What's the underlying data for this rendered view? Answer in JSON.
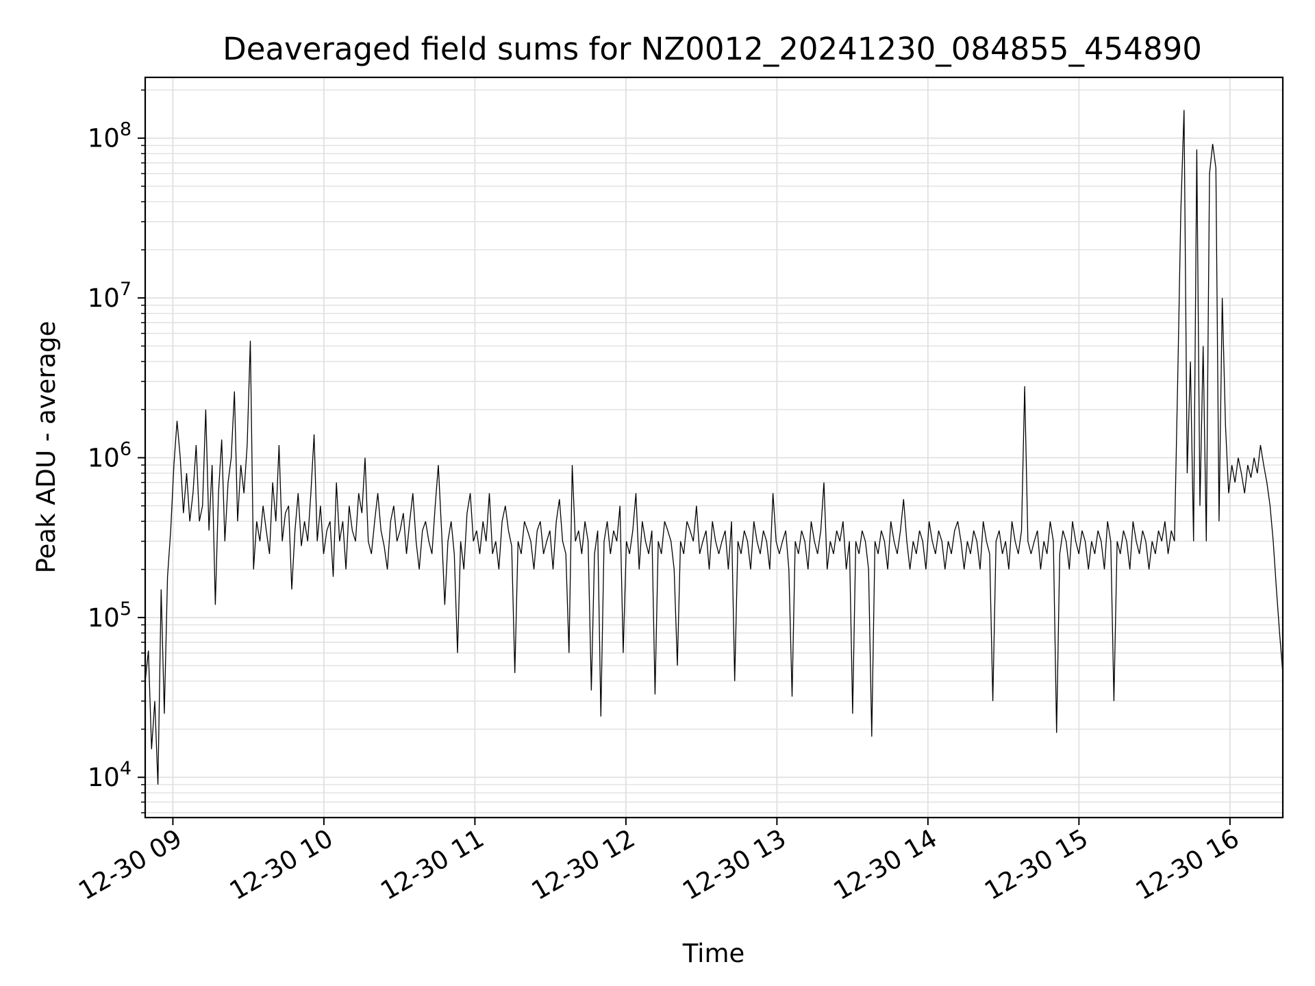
{
  "chart_data": {
    "type": "line",
    "title": "Deaveraged field sums for NZ0012_20241230_084855_454890",
    "xlabel": "Time",
    "ylabel": "Peak ADU - average",
    "yscale": "log",
    "grid": true,
    "grid_minor": true,
    "line_color": "#000000",
    "grid_color": "#e0e0e0",
    "x_start": "2024-12-30 08:49",
    "x_end": "2024-12-30 16:21",
    "xlim": [
      "2024-12-30 08:49",
      "2024-12-30 16:21"
    ],
    "ylim": [
      5600,
      240000000
    ],
    "x_ticks": [
      {
        "value": "2024-12-30 09:00",
        "label": "12-30 09"
      },
      {
        "value": "2024-12-30 10:00",
        "label": "12-30 10"
      },
      {
        "value": "2024-12-30 11:00",
        "label": "12-30 11"
      },
      {
        "value": "2024-12-30 12:00",
        "label": "12-30 12"
      },
      {
        "value": "2024-12-30 13:00",
        "label": "12-30 13"
      },
      {
        "value": "2024-12-30 14:00",
        "label": "12-30 14"
      },
      {
        "value": "2024-12-30 15:00",
        "label": "12-30 15"
      },
      {
        "value": "2024-12-30 16:00",
        "label": "12-30 16"
      }
    ],
    "y_ticks": [
      {
        "value": 10000,
        "base": "10",
        "exp": "4"
      },
      {
        "value": 100000,
        "base": "10",
        "exp": "5"
      },
      {
        "value": 1000000,
        "base": "10",
        "exp": "6"
      },
      {
        "value": 10000000,
        "base": "10",
        "exp": "7"
      },
      {
        "value": 100000000,
        "base": "10",
        "exp": "8"
      }
    ],
    "series": [
      {
        "values": [
          40000,
          62000,
          15000,
          30000,
          9000,
          150000,
          25000,
          180000,
          350000,
          900000,
          1700000,
          1000000,
          450000,
          800000,
          400000,
          600000,
          1200000,
          400000,
          500000,
          2000000,
          350000,
          900000,
          120000,
          600000,
          1300000,
          300000,
          700000,
          1000000,
          2600000,
          400000,
          900000,
          600000,
          1200000,
          5400000,
          200000,
          400000,
          300000,
          500000,
          350000,
          250000,
          700000,
          400000,
          1200000,
          300000,
          450000,
          500000,
          150000,
          350000,
          600000,
          280000,
          400000,
          300000,
          600000,
          1400000,
          300000,
          500000,
          250000,
          350000,
          400000,
          180000,
          700000,
          300000,
          400000,
          200000,
          500000,
          350000,
          300000,
          600000,
          450000,
          1000000,
          300000,
          250000,
          400000,
          600000,
          350000,
          280000,
          200000,
          400000,
          500000,
          300000,
          350000,
          450000,
          250000,
          400000,
          600000,
          300000,
          200000,
          350000,
          400000,
          300000,
          250000,
          500000,
          900000,
          350000,
          120000,
          300000,
          400000,
          250000,
          60000,
          300000,
          200000,
          450000,
          600000,
          300000,
          350000,
          250000,
          400000,
          300000,
          600000,
          250000,
          300000,
          200000,
          400000,
          500000,
          350000,
          280000,
          45000,
          300000,
          250000,
          400000,
          350000,
          300000,
          200000,
          350000,
          400000,
          250000,
          300000,
          350000,
          200000,
          400000,
          550000,
          300000,
          250000,
          60000,
          900000,
          300000,
          350000,
          250000,
          400000,
          300000,
          35000,
          250000,
          350000,
          24000,
          300000,
          400000,
          250000,
          350000,
          300000,
          500000,
          60000,
          300000,
          250000,
          350000,
          600000,
          200000,
          400000,
          300000,
          250000,
          350000,
          33000,
          300000,
          250000,
          400000,
          350000,
          300000,
          200000,
          50000,
          300000,
          250000,
          400000,
          350000,
          300000,
          500000,
          250000,
          300000,
          350000,
          200000,
          400000,
          300000,
          250000,
          300000,
          350000,
          200000,
          400000,
          40000,
          300000,
          250000,
          350000,
          300000,
          200000,
          400000,
          300000,
          250000,
          350000,
          300000,
          200000,
          600000,
          300000,
          250000,
          300000,
          350000,
          200000,
          32000,
          300000,
          250000,
          350000,
          300000,
          200000,
          400000,
          300000,
          250000,
          350000,
          700000,
          200000,
          300000,
          250000,
          350000,
          300000,
          400000,
          200000,
          300000,
          25000,
          300000,
          250000,
          350000,
          300000,
          200000,
          18000,
          300000,
          250000,
          350000,
          300000,
          200000,
          400000,
          300000,
          250000,
          350000,
          550000,
          300000,
          200000,
          300000,
          250000,
          350000,
          300000,
          200000,
          400000,
          300000,
          250000,
          350000,
          300000,
          200000,
          300000,
          250000,
          350000,
          400000,
          300000,
          200000,
          300000,
          250000,
          350000,
          300000,
          200000,
          400000,
          300000,
          250000,
          30000,
          300000,
          350000,
          250000,
          300000,
          200000,
          400000,
          300000,
          250000,
          350000,
          2800000,
          300000,
          250000,
          300000,
          350000,
          200000,
          300000,
          250000,
          400000,
          300000,
          19000,
          250000,
          350000,
          300000,
          200000,
          400000,
          300000,
          250000,
          350000,
          300000,
          200000,
          300000,
          250000,
          350000,
          300000,
          200000,
          400000,
          300000,
          30000,
          300000,
          250000,
          350000,
          300000,
          200000,
          400000,
          300000,
          250000,
          350000,
          300000,
          200000,
          300000,
          250000,
          350000,
          300000,
          400000,
          250000,
          350000,
          300000,
          3000000,
          35000000,
          150000000,
          800000,
          4000000,
          300000,
          85000000,
          500000,
          5000000,
          300000,
          60000000,
          92000000,
          65000000,
          400000,
          10000000,
          1600000,
          600000,
          900000,
          700000,
          1000000,
          800000,
          600000,
          900000,
          750000,
          1000000,
          800000,
          1200000,
          900000,
          700000,
          500000,
          300000,
          150000,
          80000,
          45000
        ]
      }
    ]
  }
}
